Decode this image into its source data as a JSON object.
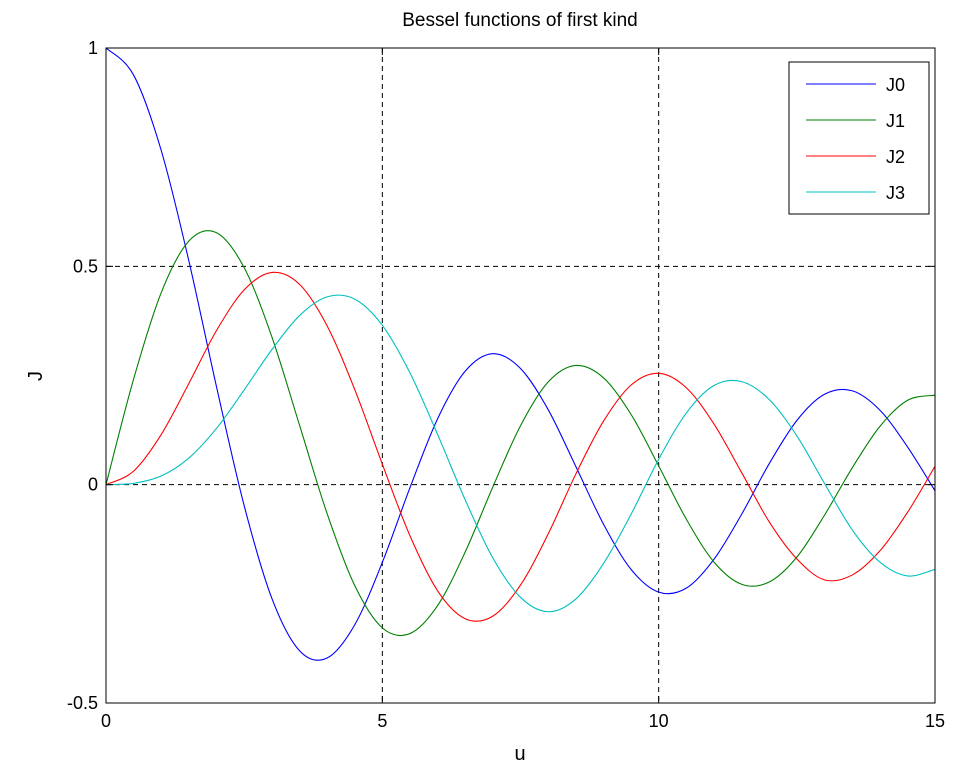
{
  "chart_data": {
    "type": "line",
    "title": "Bessel functions of first kind",
    "xlabel": "u",
    "ylabel": "J",
    "xlim": [
      0,
      15
    ],
    "ylim": [
      -0.5,
      1
    ],
    "xticks": [
      0,
      5,
      10,
      15
    ],
    "yticks": [
      -0.5,
      0,
      0.5,
      1
    ],
    "xtick_labels": [
      "0",
      "5",
      "10",
      "15"
    ],
    "ytick_labels": [
      "-0.5",
      "0",
      "0.5",
      "1"
    ],
    "grid": true,
    "legend_position": "top-right",
    "x": [
      0,
      0.5,
      1,
      1.5,
      2,
      2.5,
      3,
      3.5,
      4,
      4.5,
      5,
      5.5,
      6,
      6.5,
      7,
      7.5,
      8,
      8.5,
      9,
      9.5,
      10,
      10.5,
      11,
      11.5,
      12,
      12.5,
      13,
      13.5,
      14,
      14.5,
      15
    ],
    "series": [
      {
        "name": "J0",
        "color": "#0000ff",
        "values": [
          1.0,
          0.938,
          0.765,
          0.512,
          0.224,
          -0.048,
          -0.26,
          -0.38,
          -0.397,
          -0.321,
          -0.178,
          -0.007,
          0.151,
          0.26,
          0.3,
          0.266,
          0.172,
          0.042,
          -0.09,
          -0.194,
          -0.246,
          -0.237,
          -0.171,
          -0.068,
          0.048,
          0.147,
          0.207,
          0.215,
          0.171,
          0.087,
          -0.014
        ]
      },
      {
        "name": "J1",
        "color": "#008000",
        "values": [
          0.0,
          0.242,
          0.44,
          0.558,
          0.577,
          0.497,
          0.339,
          0.137,
          -0.066,
          -0.231,
          -0.328,
          -0.341,
          -0.277,
          -0.154,
          -0.005,
          0.135,
          0.235,
          0.273,
          0.245,
          0.161,
          0.043,
          -0.079,
          -0.177,
          -0.228,
          -0.223,
          -0.166,
          -0.07,
          0.038,
          0.133,
          0.193,
          0.205
        ]
      },
      {
        "name": "J2",
        "color": "#ff0000",
        "values": [
          0.0,
          0.031,
          0.115,
          0.232,
          0.353,
          0.446,
          0.486,
          0.459,
          0.364,
          0.218,
          0.047,
          -0.117,
          -0.243,
          -0.307,
          -0.301,
          -0.23,
          -0.113,
          0.024,
          0.145,
          0.228,
          0.255,
          0.222,
          0.139,
          0.028,
          -0.085,
          -0.17,
          -0.218,
          -0.207,
          -0.152,
          -0.064,
          0.042
        ]
      },
      {
        "name": "J3",
        "color": "#00bfbf",
        "values": [
          0.0,
          0.003,
          0.02,
          0.061,
          0.129,
          0.217,
          0.309,
          0.387,
          0.43,
          0.425,
          0.365,
          0.256,
          0.115,
          -0.035,
          -0.168,
          -0.258,
          -0.291,
          -0.262,
          -0.181,
          -0.068,
          0.058,
          0.164,
          0.227,
          0.236,
          0.195,
          0.112,
          0.003,
          -0.103,
          -0.177,
          -0.209,
          -0.194
        ]
      }
    ]
  }
}
